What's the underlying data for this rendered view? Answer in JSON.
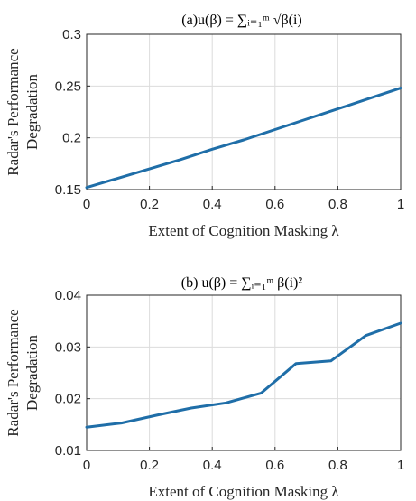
{
  "chart_data": [
    {
      "type": "line",
      "title": "(a)u(β) = ∑ᵢ₌₁ᵐ √β(i)",
      "xlabel": "Extent of Cognition Masking λ",
      "ylabel": [
        "Radar's Performance",
        "Degradation"
      ],
      "xlim": [
        0,
        1
      ],
      "ylim": [
        0.15,
        0.3
      ],
      "xticks": [
        0,
        0.2,
        0.4,
        0.6,
        0.8,
        1
      ],
      "xtick_labels": [
        "0",
        "0.2",
        "0.4",
        "0.6",
        "0.8",
        "1"
      ],
      "yticks": [
        0.15,
        0.2,
        0.25,
        0.3
      ],
      "ytick_labels": [
        "0.15",
        "0.2",
        "0.25",
        "0.3"
      ],
      "grid": true,
      "series": [
        {
          "color": "#1f6ea8",
          "x": [
            0,
            0.1,
            0.2,
            0.3,
            0.4,
            0.5,
            0.6,
            0.7,
            0.8,
            0.9,
            1
          ],
          "y": [
            0.152,
            0.161,
            0.17,
            0.179,
            0.189,
            0.198,
            0.208,
            0.218,
            0.228,
            0.238,
            0.248
          ]
        }
      ]
    },
    {
      "type": "line",
      "title": "(b) u(β) = ∑ᵢ₌₁ᵐ β(i)²",
      "xlabel": "Extent of Cognition Masking λ",
      "ylabel": [
        "Radar's Performance",
        "Degradation"
      ],
      "xlim": [
        0,
        1
      ],
      "ylim": [
        0.01,
        0.04
      ],
      "xticks": [
        0,
        0.2,
        0.4,
        0.6,
        0.8,
        1
      ],
      "xtick_labels": [
        "0",
        "0.2",
        "0.4",
        "0.6",
        "0.8",
        "1"
      ],
      "yticks": [
        0.01,
        0.02,
        0.03,
        0.04
      ],
      "ytick_labels": [
        "0.01",
        "0.02",
        "0.03",
        "0.04"
      ],
      "grid": true,
      "series": [
        {
          "color": "#1f6ea8",
          "x": [
            0,
            0.111,
            0.222,
            0.333,
            0.444,
            0.556,
            0.667,
            0.778,
            0.889,
            1
          ],
          "y": [
            0.0145,
            0.0153,
            0.0168,
            0.0182,
            0.0192,
            0.0211,
            0.0268,
            0.0273,
            0.0322,
            0.0346
          ]
        }
      ]
    }
  ]
}
